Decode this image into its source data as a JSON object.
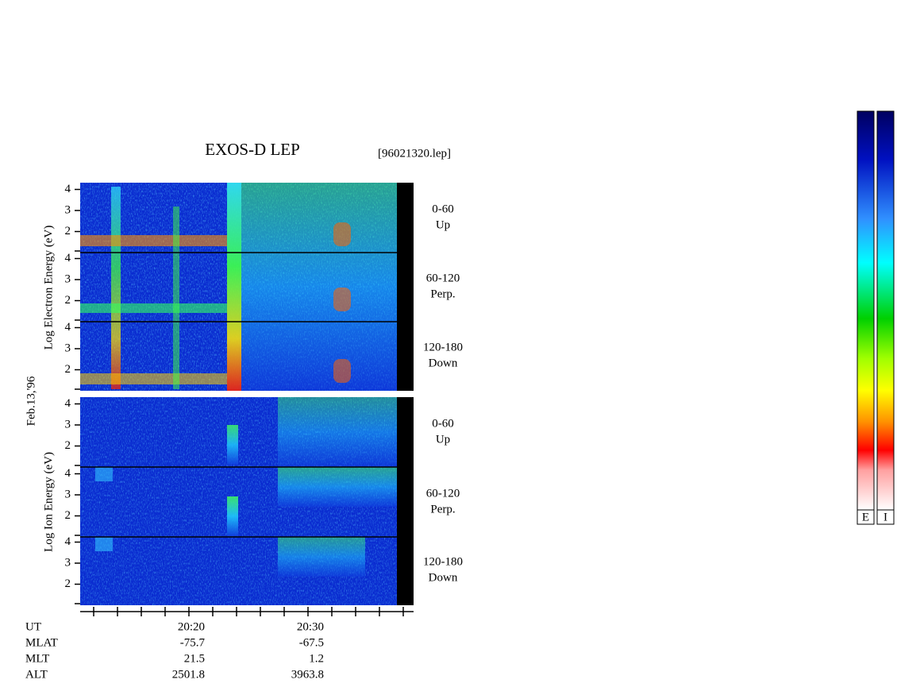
{
  "title": "EXOS-D LEP",
  "file": "[96021320.lep]",
  "date": "Feb.13,'96",
  "yticks": [
    4,
    3,
    2
  ],
  "electron": {
    "y_label": "Log Electron Energy (eV)",
    "panels": [
      {
        "angle": "0-60",
        "direction": "Up"
      },
      {
        "angle": "60-120",
        "direction": "Perp."
      },
      {
        "angle": "120-180",
        "direction": "Down"
      }
    ]
  },
  "ion": {
    "y_label": "Log Ion Energy (eV)",
    "panels": [
      {
        "angle": "0-60",
        "direction": "Up"
      },
      {
        "angle": "60-120",
        "direction": "Perp."
      },
      {
        "angle": "120-180",
        "direction": "Down"
      }
    ]
  },
  "orbit": {
    "rows": [
      {
        "name": "UT",
        "values": [
          "20:20",
          "20:30"
        ]
      },
      {
        "name": "MLAT",
        "values": [
          "-75.7",
          "-67.5"
        ]
      },
      {
        "name": "MLT",
        "values": [
          "21.5",
          "1.2"
        ]
      },
      {
        "name": "ALT",
        "values": [
          "2501.8",
          "3963.8"
        ]
      }
    ]
  },
  "colorbar": {
    "labels": [
      "E",
      "I"
    ]
  }
}
